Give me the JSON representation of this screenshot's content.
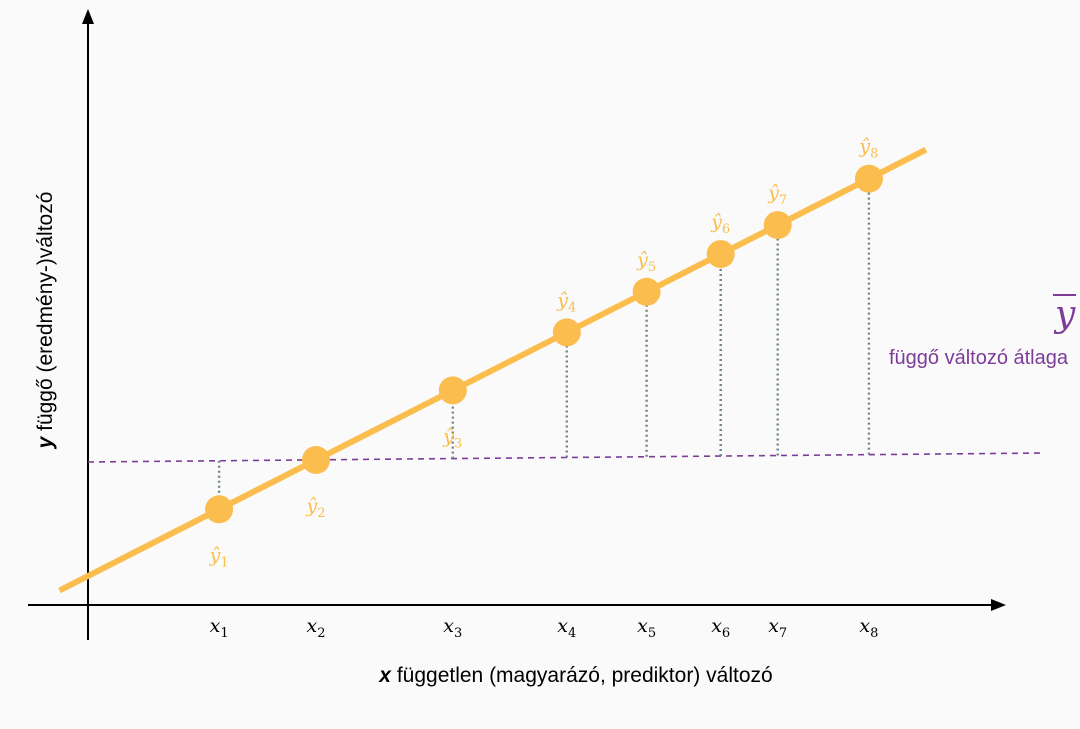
{
  "chart_data": {
    "type": "scatter",
    "title": "",
    "xlabel_symbol": "x",
    "xlabel_text": " független (magyarázó, prediktor) változó",
    "ylabel_symbol": "y",
    "ylabel_text": " függő (eredmény-)változó",
    "mean_symbol": "y",
    "mean_caption": "függő változó átlaga",
    "regression": {
      "intercept": 0.58,
      "slope": 0.58
    },
    "mean_value": 2.9,
    "xlim": [
      -0.5,
      14.5
    ],
    "ylim": [
      0,
      8
    ],
    "points": [
      {
        "x_value": 2.3,
        "x_label": "x",
        "x_sub": "1",
        "yhat_label": "ŷ",
        "yhat_sub": "1",
        "yhat_pos": "below"
      },
      {
        "x_value": 4.0,
        "x_label": "x",
        "x_sub": "2",
        "yhat_label": "ŷ",
        "yhat_sub": "2",
        "yhat_pos": "below"
      },
      {
        "x_value": 6.4,
        "x_label": "x",
        "x_sub": "3",
        "yhat_label": "ŷ",
        "yhat_sub": "3",
        "yhat_pos": "below"
      },
      {
        "x_value": 8.4,
        "x_label": "x",
        "x_sub": "4",
        "yhat_label": "ŷ",
        "yhat_sub": "4",
        "yhat_pos": "above"
      },
      {
        "x_value": 9.8,
        "x_label": "x",
        "x_sub": "5",
        "yhat_label": "ŷ",
        "yhat_sub": "5",
        "yhat_pos": "above"
      },
      {
        "x_value": 11.1,
        "x_label": "x",
        "x_sub": "6",
        "yhat_label": "ŷ",
        "yhat_sub": "6",
        "yhat_pos": "above"
      },
      {
        "x_value": 12.1,
        "x_label": "x",
        "x_sub": "7",
        "yhat_label": "ŷ",
        "yhat_sub": "7",
        "yhat_pos": "above"
      },
      {
        "x_value": 13.7,
        "x_label": "x",
        "x_sub": "8",
        "yhat_label": "ŷ",
        "yhat_sub": "8",
        "yhat_pos": "above"
      }
    ],
    "colors": {
      "regression": "#fbbd4d",
      "mean": "#7d3c98",
      "residual": "#6f8487",
      "axis": "#000000"
    }
  }
}
